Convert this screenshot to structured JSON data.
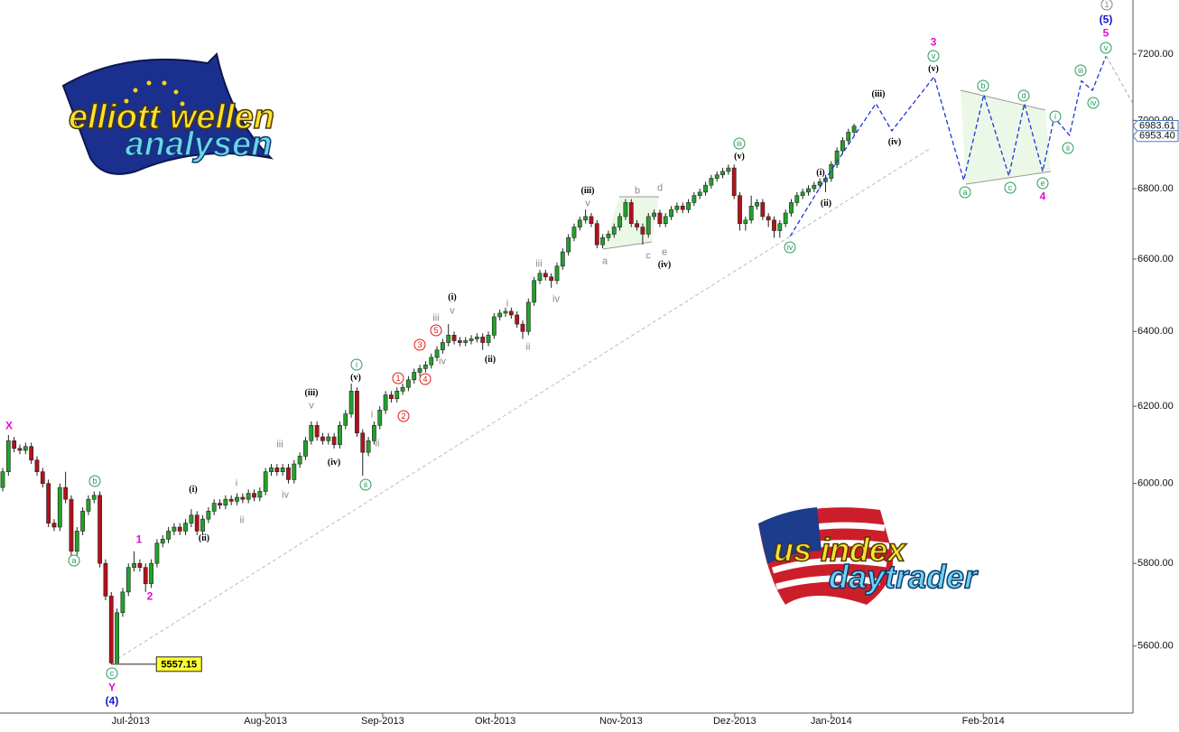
{
  "chart_data": {
    "type": "candlestick",
    "log_y": true,
    "up_color": "#22a12b",
    "down_color": "#b3121a",
    "projection_color": "#1f35d8",
    "xlim": [
      -0.474,
      197.8
    ],
    "ylim": [
      5443,
      7367
    ],
    "yticks": [
      {
        "value": 5600,
        "label": "5600.00"
      },
      {
        "value": 5800,
        "label": "5800.00"
      },
      {
        "value": 6000,
        "label": "6000.00"
      },
      {
        "value": 6200,
        "label": "6200.00"
      },
      {
        "value": 6400,
        "label": "6400.00"
      },
      {
        "value": 6600,
        "label": "6600.00"
      },
      {
        "value": 6800,
        "label": "6800.00"
      },
      {
        "value": 7000,
        "label": "7000.00"
      },
      {
        "value": 7200,
        "label": "7200.00"
      }
    ],
    "xticks": [
      {
        "value": 22.4,
        "label": "Jul-2013"
      },
      {
        "value": 46,
        "label": "Aug-2013"
      },
      {
        "value": 66.5,
        "label": "Sep-2013"
      },
      {
        "value": 86.2,
        "label": "Okt-2013"
      },
      {
        "value": 108.2,
        "label": "Nov-2013"
      },
      {
        "value": 128.1,
        "label": "Dez-2013"
      },
      {
        "value": 145,
        "label": "Jan-2014"
      },
      {
        "value": 171.6,
        "label": "Feb-2014"
      }
    ],
    "x": [
      0,
      1,
      2,
      3,
      4,
      5,
      6,
      7,
      8,
      9,
      10,
      11,
      12,
      13,
      14,
      15,
      16,
      17,
      18,
      19,
      20,
      21,
      22,
      23,
      24,
      25,
      26,
      27,
      28,
      29,
      30,
      31,
      32,
      33,
      34,
      35,
      36,
      37,
      38,
      39,
      40,
      41,
      42,
      43,
      44,
      45,
      46,
      47,
      48,
      49,
      50,
      51,
      52,
      53,
      54,
      55,
      56,
      57,
      58,
      59,
      60,
      61,
      62,
      63,
      64,
      65,
      66,
      67,
      68,
      69,
      70,
      71,
      72,
      73,
      74,
      75,
      76,
      77,
      78,
      79,
      80,
      81,
      82,
      83,
      84,
      85,
      86,
      87,
      88,
      89,
      90,
      91,
      92,
      93,
      94,
      95,
      96,
      97,
      98,
      99,
      100,
      101,
      102,
      103,
      104,
      105,
      106,
      107,
      108,
      109,
      110,
      111,
      112,
      113,
      114,
      115,
      116,
      117,
      118,
      119,
      120,
      121,
      122,
      123,
      124,
      125,
      126,
      127,
      128,
      129,
      130,
      131,
      132,
      133,
      134,
      135,
      136,
      137,
      138,
      139,
      140,
      141,
      142,
      143,
      144,
      145,
      146,
      147,
      148,
      149
    ],
    "open": [
      5990,
      6030,
      6110,
      6090,
      6085,
      6095,
      6060,
      6030,
      6000,
      5900,
      5890,
      5990,
      5960,
      5830,
      5880,
      5930,
      5960,
      5970,
      5800,
      5720,
      5560,
      5680,
      5730,
      5790,
      5800,
      5790,
      5750,
      5800,
      5850,
      5860,
      5880,
      5890,
      5880,
      5900,
      5920,
      5880,
      5910,
      5930,
      5950,
      5945,
      5960,
      5955,
      5965,
      5960,
      5975,
      5965,
      5980,
      6030,
      6040,
      6030,
      6040,
      6010,
      6050,
      6070,
      6110,
      6150,
      6120,
      6110,
      6120,
      6100,
      6150,
      6180,
      6240,
      6130,
      6080,
      6110,
      6150,
      6190,
      6230,
      6220,
      6240,
      6250,
      6270,
      6290,
      6300,
      6310,
      6330,
      6350,
      6370,
      6390,
      6375,
      6370,
      6375,
      6380,
      6385,
      6370,
      6390,
      6440,
      6450,
      6455,
      6445,
      6420,
      6400,
      6480,
      6540,
      6560,
      6550,
      6540,
      6580,
      6620,
      6660,
      6690,
      6710,
      6720,
      6700,
      6640,
      6660,
      6670,
      6690,
      6720,
      6760,
      6700,
      6690,
      6670,
      6720,
      6730,
      6700,
      6720,
      6740,
      6750,
      6740,
      6760,
      6780,
      6790,
      6810,
      6830,
      6840,
      6850,
      6860,
      6780,
      6700,
      6710,
      6750,
      6760,
      6720,
      6710,
      6680,
      6700,
      6730,
      6760,
      6780,
      6790,
      6800,
      6810,
      6820,
      6830,
      6870,
      6910,
      6940,
      6965
    ],
    "high": [
      6040,
      6125,
      6120,
      6100,
      6105,
      6105,
      6070,
      6040,
      6010,
      5910,
      6000,
      6030,
      5970,
      5890,
      5940,
      5970,
      5980,
      5980,
      5810,
      5730,
      5690,
      5740,
      5800,
      5830,
      5810,
      5800,
      5810,
      5860,
      5870,
      5890,
      5900,
      5900,
      5910,
      5935,
      5930,
      5920,
      5940,
      5960,
      5960,
      5970,
      5970,
      5975,
      5975,
      5985,
      5985,
      5990,
      6040,
      6050,
      6050,
      6050,
      6050,
      6060,
      6080,
      6120,
      6160,
      6160,
      6130,
      6130,
      6130,
      6160,
      6190,
      6260,
      6250,
      6140,
      6120,
      6160,
      6200,
      6240,
      6240,
      6250,
      6260,
      6280,
      6300,
      6310,
      6320,
      6340,
      6360,
      6380,
      6420,
      6400,
      6385,
      6385,
      6390,
      6395,
      6395,
      6400,
      6450,
      6460,
      6465,
      6465,
      6455,
      6430,
      6490,
      6550,
      6570,
      6570,
      6560,
      6590,
      6630,
      6670,
      6700,
      6720,
      6740,
      6730,
      6710,
      6670,
      6680,
      6700,
      6730,
      6770,
      6770,
      6710,
      6700,
      6730,
      6740,
      6740,
      6730,
      6750,
      6760,
      6760,
      6770,
      6790,
      6800,
      6820,
      6840,
      6850,
      6860,
      6870,
      6870,
      6790,
      6720,
      6780,
      6770,
      6770,
      6730,
      6720,
      6710,
      6740,
      6770,
      6790,
      6800,
      6810,
      6820,
      6830,
      6840,
      6880,
      6920,
      6950,
      6975,
      6990
    ],
    "low": [
      5980,
      6020,
      6080,
      6075,
      6075,
      6050,
      6020,
      5990,
      5890,
      5880,
      5880,
      5950,
      5800,
      5820,
      5870,
      5920,
      5950,
      5790,
      5710,
      5557.15,
      5560,
      5670,
      5720,
      5780,
      5780,
      5730,
      5740,
      5790,
      5840,
      5850,
      5870,
      5870,
      5870,
      5890,
      5870,
      5870,
      5900,
      5920,
      5935,
      5935,
      5945,
      5945,
      5950,
      5950,
      5955,
      5955,
      5970,
      6020,
      6020,
      6020,
      6000,
      6000,
      6040,
      6060,
      6100,
      6110,
      6100,
      6100,
      6090,
      6090,
      6140,
      6170,
      6120,
      6020,
      6070,
      6100,
      6140,
      6180,
      6210,
      6210,
      6230,
      6240,
      6260,
      6280,
      6290,
      6300,
      6320,
      6340,
      6360,
      6365,
      6360,
      6360,
      6365,
      6370,
      6350,
      6360,
      6380,
      6430,
      6440,
      6435,
      6410,
      6380,
      6390,
      6470,
      6530,
      6540,
      6520,
      6530,
      6570,
      6610,
      6650,
      6680,
      6700,
      6690,
      6630,
      6630,
      6650,
      6660,
      6680,
      6710,
      6690,
      6680,
      6640,
      6660,
      6710,
      6690,
      6690,
      6710,
      6730,
      6730,
      6730,
      6750,
      6770,
      6780,
      6800,
      6820,
      6830,
      6840,
      6770,
      6680,
      6680,
      6700,
      6740,
      6710,
      6690,
      6660,
      6660,
      6690,
      6720,
      6750,
      6770,
      6780,
      6790,
      6800,
      6790,
      6820,
      6860,
      6900,
      6930,
      6955
    ],
    "close": [
      6030,
      6110,
      6090,
      6085,
      6095,
      6060,
      6030,
      6000,
      5900,
      5890,
      5990,
      5960,
      5830,
      5880,
      5930,
      5960,
      5970,
      5800,
      5720,
      5560,
      5680,
      5730,
      5790,
      5800,
      5790,
      5750,
      5800,
      5850,
      5860,
      5880,
      5890,
      5880,
      5900,
      5920,
      5880,
      5910,
      5930,
      5950,
      5945,
      5960,
      5955,
      5965,
      5960,
      5975,
      5965,
      5980,
      6030,
      6040,
      6030,
      6040,
      6010,
      6050,
      6070,
      6110,
      6150,
      6120,
      6110,
      6120,
      6100,
      6150,
      6180,
      6240,
      6130,
      6080,
      6110,
      6150,
      6190,
      6230,
      6220,
      6240,
      6250,
      6270,
      6290,
      6300,
      6310,
      6330,
      6350,
      6370,
      6390,
      6375,
      6370,
      6375,
      6380,
      6385,
      6370,
      6390,
      6440,
      6450,
      6455,
      6445,
      6420,
      6400,
      6480,
      6540,
      6560,
      6550,
      6540,
      6580,
      6620,
      6660,
      6690,
      6710,
      6720,
      6700,
      6640,
      6660,
      6670,
      6690,
      6720,
      6760,
      6700,
      6690,
      6670,
      6720,
      6730,
      6700,
      6720,
      6740,
      6750,
      6740,
      6760,
      6780,
      6790,
      6810,
      6830,
      6840,
      6850,
      6860,
      6780,
      6700,
      6710,
      6750,
      6760,
      6720,
      6710,
      6680,
      6700,
      6730,
      6760,
      6780,
      6790,
      6800,
      6810,
      6820,
      6830,
      6870,
      6910,
      6940,
      6965,
      6983
    ],
    "projection": {
      "x": [
        137.8,
        143.3,
        152.8,
        155.6,
        163.0,
        168.2,
        171.7,
        176.1,
        178.8,
        182.0,
        184.0,
        186.7,
        188.8,
        190.7,
        193.1
      ],
      "values": [
        6664,
        6811,
        7050,
        6969,
        7131,
        6824,
        7077,
        6837,
        7050,
        6850,
        7009,
        6956,
        7118,
        7090,
        7194
      ]
    },
    "projection_tail": {
      "x": [
        193.1,
        197.8
      ],
      "values": [
        7194,
        7050
      ]
    },
    "trendline": {
      "x": [
        20.1,
        162.2
      ],
      "values": [
        5570,
        6916
      ]
    },
    "price_tags": [
      {
        "value": 6983.61,
        "label": "6983.61"
      },
      {
        "value": 6953.4,
        "label": "6953.40"
      }
    ],
    "wave_labels": [
      "X",
      "Y",
      "1",
      "2",
      "3",
      "5",
      "4",
      "(4)",
      "(5)",
      "(i)",
      "(ii)",
      "(iii)",
      "(iv)",
      "(v)",
      "(i)",
      "(ii)",
      "(iii)",
      "(iv)",
      "(v)",
      "(i)",
      "(ii)",
      "(iii)",
      "(iv)",
      "(v)",
      "i",
      "ii",
      "iii",
      "iv",
      "v",
      "i",
      "ii",
      "iii",
      "v",
      "iv",
      "i",
      "ii",
      "iii",
      "iv",
      "v",
      "a",
      "b",
      "c",
      "d",
      "e",
      "a",
      "b",
      "c",
      "i",
      "ii",
      "iii",
      "iv",
      "v",
      "a",
      "b",
      "c",
      "d",
      "e",
      "i",
      "ii",
      "iii",
      "iv",
      "v",
      "1",
      "2",
      "3",
      "4",
      "5",
      "1"
    ],
    "logos": [
      "elliott wellen",
      "analysen",
      "us index",
      "daytrader"
    ]
  }
}
